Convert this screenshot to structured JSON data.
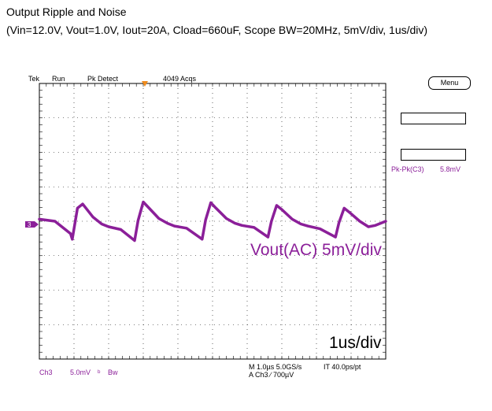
{
  "header": {
    "title": "Output Ripple and Noise",
    "conditions": "(Vin=12.0V, Vout=1.0V, Iout=20A, Cload=660uF, Scope BW=20MHz, 5mV/div, 1us/div)"
  },
  "scope": {
    "brand": "Tek",
    "state": "Run",
    "mode": "Pk Detect",
    "acquisitions": "4049 Acqs",
    "menu_label": "Menu",
    "measurement_label": "Pk-Pk(C3)",
    "measurement_value": "5.8mV",
    "channel_marker": "3",
    "footer": {
      "channel": "Ch3",
      "scale": "5.0mV",
      "coupling": "Bw",
      "timebase_line": "M 1.0µs 5.0GS/s",
      "sample_interval": "IT 40.0ps/pt",
      "trigger_line": "A  Ch3  ∕  700µV"
    },
    "colors": {
      "trace": "#8b1f99",
      "grid": "#000000",
      "trigger_marker": "#f08c1e"
    }
  },
  "annotations": {
    "vertical_scale": "Vout(AC) 5mV/div",
    "horizontal_scale": "1us/div"
  },
  "chart_data": {
    "type": "line",
    "xlabel": "",
    "ylabel": "",
    "x_unit": "us",
    "y_unit": "mV",
    "xlim": [
      0,
      10
    ],
    "ylim": [
      -20,
      20
    ],
    "grid": true,
    "ripple_period_us": 1.9,
    "series": [
      {
        "x": [
          0.0,
          0.45,
          0.9,
          0.95,
          1.1,
          1.25,
          1.55,
          1.8,
          2.0,
          2.35,
          2.75,
          2.85,
          3.0,
          3.15,
          3.45,
          3.7,
          3.9,
          4.25,
          4.7,
          4.8,
          4.95,
          5.1,
          5.4,
          5.65,
          5.85,
          6.2,
          6.6,
          6.7,
          6.85,
          7.0,
          7.3,
          7.55,
          7.75,
          8.1,
          8.55,
          8.65,
          8.8,
          8.95,
          9.25,
          9.5,
          9.7,
          10.0
        ],
        "y": [
          0.3,
          0.0,
          -1.8,
          -2.6,
          1.9,
          2.5,
          0.6,
          -0.4,
          -0.8,
          -1.2,
          -2.8,
          0.1,
          2.8,
          2.0,
          0.4,
          -0.3,
          -0.7,
          -1.0,
          -2.6,
          0.2,
          2.7,
          1.9,
          0.4,
          -0.3,
          -0.6,
          -0.9,
          -2.3,
          0.0,
          2.3,
          1.7,
          0.3,
          -0.4,
          -0.7,
          -1.1,
          -2.3,
          -0.2,
          1.9,
          1.3,
          0.0,
          -0.8,
          -0.6,
          0.0
        ]
      }
    ]
  }
}
